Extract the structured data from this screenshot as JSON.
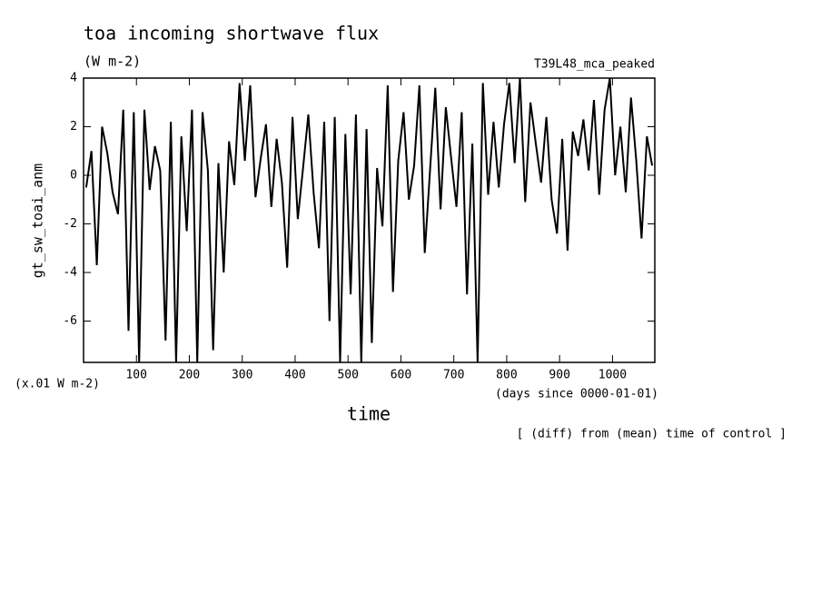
{
  "chart_data": {
    "type": "line",
    "title": "toa incoming shortwave flux",
    "subtitle": "(W m-2)",
    "experiment": "T39L48_mca_peaked",
    "y_label": "gt_sw_toai_anm",
    "y_units": "(x.01 W m-2)",
    "x_label": "time",
    "x_units": "(days since 0000-01-01)",
    "note": "[ (diff) from (mean) time of control ]",
    "xlim": [
      0,
      1080
    ],
    "ylim": [
      -7.7,
      4
    ],
    "xticks": [
      100,
      200,
      300,
      400,
      500,
      600,
      700,
      800,
      900,
      1000
    ],
    "yticks": [
      -6,
      -4,
      -2,
      0,
      2,
      4
    ],
    "color": "#000000",
    "x": [
      5,
      15,
      25,
      35,
      45,
      55,
      65,
      75,
      85,
      95,
      105,
      115,
      125,
      135,
      145,
      155,
      165,
      175,
      185,
      195,
      205,
      215,
      225,
      235,
      245,
      255,
      265,
      275,
      285,
      295,
      305,
      315,
      325,
      335,
      345,
      355,
      365,
      375,
      385,
      395,
      405,
      415,
      425,
      435,
      445,
      455,
      465,
      475,
      485,
      495,
      505,
      515,
      525,
      535,
      545,
      555,
      565,
      575,
      585,
      595,
      605,
      615,
      625,
      635,
      645,
      655,
      665,
      675,
      685,
      695,
      705,
      715,
      725,
      735,
      745,
      755,
      765,
      775,
      785,
      795,
      805,
      815,
      825,
      835,
      845,
      855,
      865,
      875,
      885,
      895,
      905,
      915,
      925,
      935,
      945,
      955,
      965,
      975,
      985,
      995,
      1005,
      1015,
      1025,
      1035,
      1045,
      1055,
      1065,
      1075
    ],
    "values": [
      -0.5,
      1.0,
      -3.7,
      2.0,
      0.9,
      -0.7,
      -1.6,
      2.7,
      -6.4,
      2.6,
      -7.7,
      2.7,
      -0.6,
      1.2,
      0.2,
      -6.8,
      2.2,
      -7.7,
      1.6,
      -2.3,
      2.7,
      -7.7,
      2.6,
      0.2,
      -7.2,
      0.5,
      -4.0,
      1.4,
      -0.4,
      3.8,
      0.6,
      3.7,
      -0.9,
      0.7,
      2.1,
      -1.3,
      1.5,
      -0.3,
      -3.8,
      2.4,
      -1.8,
      0.3,
      2.5,
      -0.7,
      -3.0,
      2.2,
      -6.0,
      2.4,
      -7.7,
      1.7,
      -4.9,
      2.5,
      -7.7,
      1.9,
      -6.9,
      0.3,
      -2.1,
      3.7,
      -4.8,
      0.6,
      2.6,
      -1.0,
      0.4,
      3.7,
      -3.2,
      0.2,
      3.6,
      -1.4,
      2.8,
      0.7,
      -1.3,
      2.6,
      -4.9,
      1.3,
      -7.7,
      3.8,
      -0.8,
      2.2,
      -0.5,
      2.1,
      3.8,
      0.5,
      4.0,
      -1.1,
      3.0,
      1.3,
      -0.3,
      2.4,
      -1.0,
      -2.4,
      1.5,
      -3.1,
      1.8,
      0.8,
      2.3,
      0.2,
      3.1,
      -0.8,
      2.7,
      4.0,
      0.0,
      2.0,
      -0.7,
      3.2,
      0.6,
      -2.6,
      1.6,
      0.4
    ]
  }
}
